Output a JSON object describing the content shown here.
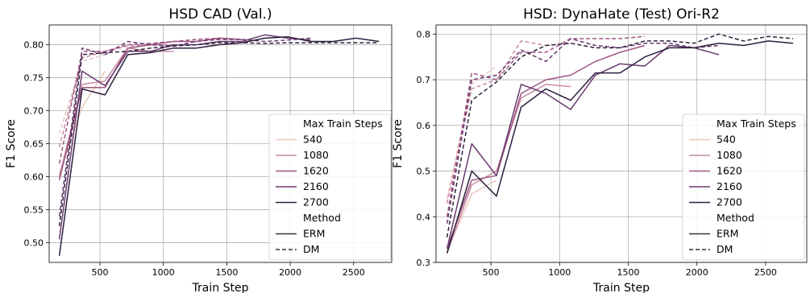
{
  "chart_data": [
    {
      "type": "line",
      "title": "HSD CAD (Val.)",
      "xlabel": "Train Step",
      "ylabel": "F1 Score",
      "xlim": [
        100,
        2800
      ],
      "ylim": [
        0.47,
        0.83
      ],
      "xticks": [
        500,
        1000,
        1500,
        2000,
        2500
      ],
      "yticks": [
        0.5,
        0.55,
        0.6,
        0.65,
        0.7,
        0.75,
        0.8
      ],
      "ytick_labels": [
        "0.50",
        "0.55",
        "0.60",
        "0.65",
        "0.70",
        "0.75",
        "0.80"
      ],
      "grid": true,
      "legend_position": "lower right",
      "legend": {
        "title": "Max Train Steps",
        "hue_entries": [
          "540",
          "1080",
          "1620",
          "2160",
          "2700"
        ],
        "style_title": "Method",
        "style_entries": [
          "ERM",
          "DM"
        ]
      },
      "series": [
        {
          "max_steps": "540",
          "method": "ERM",
          "x": [
            180,
            360,
            540
          ],
          "y": [
            0.605,
            0.705,
            0.76
          ]
        },
        {
          "max_steps": "540",
          "method": "DM",
          "x": [
            180,
            360,
            540
          ],
          "y": [
            0.665,
            0.775,
            0.785
          ]
        },
        {
          "max_steps": "1080",
          "method": "ERM",
          "x": [
            180,
            360,
            540,
            720,
            900,
            1080
          ],
          "y": [
            0.6,
            0.74,
            0.745,
            0.795,
            0.79,
            0.79
          ]
        },
        {
          "max_steps": "1080",
          "method": "DM",
          "x": [
            180,
            360,
            540,
            720,
            900,
            1080
          ],
          "y": [
            0.645,
            0.78,
            0.79,
            0.798,
            0.8,
            0.8
          ]
        },
        {
          "max_steps": "1620",
          "method": "ERM",
          "x": [
            180,
            360,
            540,
            720,
            900,
            1080,
            1260,
            1440,
            1620
          ],
          "y": [
            0.595,
            0.735,
            0.735,
            0.795,
            0.8,
            0.805,
            0.805,
            0.81,
            0.808
          ]
        },
        {
          "max_steps": "1620",
          "method": "DM",
          "x": [
            180,
            360,
            540,
            720,
            900,
            1080,
            1260,
            1440,
            1620
          ],
          "y": [
            0.62,
            0.79,
            0.79,
            0.8,
            0.802,
            0.805,
            0.808,
            0.81,
            0.808
          ]
        },
        {
          "max_steps": "2160",
          "method": "ERM",
          "x": [
            180,
            360,
            540,
            720,
            900,
            1080,
            1260,
            1440,
            1620,
            1800,
            1980,
            2160
          ],
          "y": [
            0.505,
            0.76,
            0.738,
            0.79,
            0.79,
            0.8,
            0.8,
            0.805,
            0.805,
            0.815,
            0.81,
            0.807
          ]
        },
        {
          "max_steps": "2160",
          "method": "DM",
          "x": [
            180,
            360,
            540,
            720,
            900,
            1080,
            1260,
            1440,
            1620,
            1800,
            1980,
            2160
          ],
          "y": [
            0.54,
            0.795,
            0.785,
            0.805,
            0.8,
            0.798,
            0.805,
            0.808,
            0.808,
            0.805,
            0.807,
            0.81
          ]
        },
        {
          "max_steps": "2700",
          "method": "ERM",
          "x": [
            180,
            360,
            540,
            720,
            900,
            1080,
            1260,
            1440,
            1620,
            1800,
            1980,
            2160,
            2340,
            2520,
            2700
          ],
          "y": [
            0.48,
            0.733,
            0.724,
            0.785,
            0.788,
            0.795,
            0.795,
            0.8,
            0.803,
            0.81,
            0.812,
            0.805,
            0.805,
            0.81,
            0.805
          ]
        },
        {
          "max_steps": "2700",
          "method": "DM",
          "x": [
            180,
            360,
            540,
            720,
            900,
            1080,
            1260,
            1440,
            1620,
            1800,
            1980,
            2160,
            2340,
            2520,
            2700
          ],
          "y": [
            0.525,
            0.785,
            0.788,
            0.79,
            0.795,
            0.798,
            0.8,
            0.803,
            0.803,
            0.802,
            0.803,
            0.803,
            0.803,
            0.803,
            0.803
          ]
        }
      ]
    },
    {
      "type": "line",
      "title": "HSD: DynaHate (Test) Ori-R2",
      "xlabel": "Train Step",
      "ylabel": "F1 Score",
      "xlim": [
        100,
        2800
      ],
      "ylim": [
        0.3,
        0.82
      ],
      "xticks": [
        500,
        1000,
        1500,
        2000,
        2500
      ],
      "yticks": [
        0.3,
        0.4,
        0.5,
        0.6,
        0.7,
        0.8
      ],
      "ytick_labels": [
        "0.3",
        "0.4",
        "0.5",
        "0.6",
        "0.7",
        "0.8"
      ],
      "grid": true,
      "legend_position": "lower right",
      "legend": {
        "title": "Max Train Steps",
        "hue_entries": [
          "540",
          "1080",
          "1620",
          "2160",
          "2700"
        ],
        "style_title": "Method",
        "style_entries": [
          "ERM",
          "DM"
        ]
      },
      "series": [
        {
          "max_steps": "540",
          "method": "ERM",
          "x": [
            180,
            360,
            540
          ],
          "y": [
            0.325,
            0.45,
            0.48
          ]
        },
        {
          "max_steps": "540",
          "method": "DM",
          "x": [
            180,
            360,
            540
          ],
          "y": [
            0.44,
            0.69,
            0.73
          ]
        },
        {
          "max_steps": "1080",
          "method": "ERM",
          "x": [
            180,
            360,
            540,
            720,
            900,
            1080
          ],
          "y": [
            0.32,
            0.47,
            0.5,
            0.66,
            0.69,
            0.685
          ]
        },
        {
          "max_steps": "1080",
          "method": "DM",
          "x": [
            180,
            360,
            540,
            720,
            900,
            1080
          ],
          "y": [
            0.43,
            0.68,
            0.7,
            0.785,
            0.775,
            0.78
          ]
        },
        {
          "max_steps": "1620",
          "method": "ERM",
          "x": [
            180,
            360,
            540,
            720,
            900,
            1080,
            1260,
            1440,
            1620
          ],
          "y": [
            0.33,
            0.48,
            0.49,
            0.67,
            0.7,
            0.71,
            0.74,
            0.76,
            0.775
          ]
        },
        {
          "max_steps": "1620",
          "method": "DM",
          "x": [
            180,
            360,
            540,
            720,
            900,
            1080,
            1260,
            1440,
            1620
          ],
          "y": [
            0.4,
            0.715,
            0.7,
            0.76,
            0.76,
            0.79,
            0.79,
            0.79,
            0.795
          ]
        },
        {
          "max_steps": "2160",
          "method": "ERM",
          "x": [
            180,
            360,
            540,
            720,
            900,
            1080,
            1260,
            1440,
            1620,
            1800,
            1980,
            2160
          ],
          "y": [
            0.33,
            0.56,
            0.49,
            0.69,
            0.67,
            0.635,
            0.71,
            0.735,
            0.73,
            0.775,
            0.77,
            0.755
          ]
        },
        {
          "max_steps": "2160",
          "method": "DM",
          "x": [
            180,
            360,
            540,
            720,
            900,
            1080,
            1260,
            1440,
            1620,
            1800,
            1980,
            2160
          ],
          "y": [
            0.385,
            0.7,
            0.71,
            0.765,
            0.74,
            0.79,
            0.775,
            0.77,
            0.78,
            0.78,
            0.77,
            0.775
          ]
        },
        {
          "max_steps": "2700",
          "method": "ERM",
          "x": [
            180,
            360,
            540,
            720,
            900,
            1080,
            1260,
            1440,
            1620,
            1800,
            1980,
            2160,
            2340,
            2520,
            2700
          ],
          "y": [
            0.32,
            0.5,
            0.445,
            0.64,
            0.68,
            0.655,
            0.715,
            0.715,
            0.75,
            0.77,
            0.77,
            0.78,
            0.775,
            0.785,
            0.78
          ]
        },
        {
          "max_steps": "2700",
          "method": "DM",
          "x": [
            180,
            360,
            540,
            720,
            900,
            1080,
            1260,
            1440,
            1620,
            1800,
            1980,
            2160,
            2340,
            2520,
            2700
          ],
          "y": [
            0.355,
            0.655,
            0.695,
            0.75,
            0.775,
            0.78,
            0.77,
            0.77,
            0.785,
            0.785,
            0.78,
            0.8,
            0.785,
            0.795,
            0.79
          ]
        }
      ]
    }
  ],
  "palette": {
    "540": "#ebc8bc",
    "1080": "#c98da3",
    "1620": "#a05583",
    "2160": "#6a3a6e",
    "2700": "#2d1e3e"
  }
}
